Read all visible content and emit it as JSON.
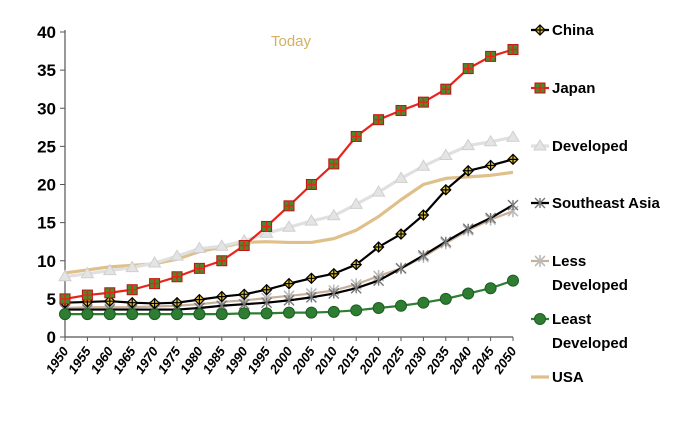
{
  "chart_data": {
    "type": "line",
    "title": "",
    "xlabel": "",
    "ylabel": "",
    "ylim": [
      0,
      40
    ],
    "yticks": [
      "0",
      "5",
      "10",
      "15",
      "20",
      "25",
      "30",
      "35",
      "40"
    ],
    "categories": [
      "1950",
      "1955",
      "1960",
      "1965",
      "1970",
      "1975",
      "1980",
      "1985",
      "1990",
      "1995",
      "2000",
      "2005",
      "2010",
      "2015",
      "2020",
      "2025",
      "2030",
      "2035",
      "2040",
      "2045",
      "2050"
    ],
    "grid": false,
    "legend_position": "right",
    "annotation": {
      "text": "Today",
      "x_category": "2000",
      "color": "#d4b060"
    },
    "series": [
      {
        "name": "China",
        "color": "#000000",
        "marker": "diamond-cross",
        "values": [
          4.5,
          4.6,
          4.7,
          4.5,
          4.4,
          4.5,
          4.9,
          5.3,
          5.6,
          6.2,
          7.0,
          7.7,
          8.3,
          9.5,
          11.8,
          13.5,
          16.0,
          19.3,
          21.8,
          22.5,
          23.3
        ]
      },
      {
        "name": "Japan",
        "color": "#e8241a",
        "marker": "square-cross",
        "values": [
          5.0,
          5.5,
          5.8,
          6.2,
          7.0,
          7.9,
          9.0,
          10.0,
          12.0,
          14.5,
          17.2,
          20.0,
          22.7,
          26.3,
          28.5,
          29.7,
          30.8,
          32.5,
          35.2,
          36.8,
          37.7
        ]
      },
      {
        "name": "Developed",
        "color": "#e0e0e0",
        "marker": "triangle",
        "values": [
          7.9,
          8.3,
          8.7,
          9.1,
          9.7,
          10.6,
          11.6,
          11.9,
          12.6,
          13.6,
          14.4,
          15.2,
          15.9,
          17.4,
          19.0,
          20.8,
          22.4,
          23.8,
          25.1,
          25.6,
          26.2
        ]
      },
      {
        "name": "Southeast Asia",
        "color": "#000000",
        "marker": "x-star",
        "values": [
          3.6,
          3.6,
          3.6,
          3.6,
          3.6,
          3.6,
          3.8,
          4.1,
          4.3,
          4.5,
          4.8,
          5.2,
          5.7,
          6.4,
          7.4,
          9.0,
          10.7,
          12.5,
          14.2,
          15.6,
          17.3
        ]
      },
      {
        "name": "Less Developed",
        "color": "#c9b09a",
        "marker": "asterisk",
        "values": [
          3.8,
          3.9,
          3.9,
          3.9,
          4.0,
          4.1,
          4.3,
          4.6,
          4.8,
          5.1,
          5.4,
          5.7,
          6.1,
          6.9,
          8.0,
          9.0,
          10.5,
          12.3,
          14.0,
          15.4,
          16.5
        ]
      },
      {
        "name": "Least Developed",
        "color": "#2e7d32",
        "marker": "circle-cross",
        "values": [
          3.0,
          3.0,
          3.0,
          3.0,
          3.0,
          3.0,
          3.0,
          3.0,
          3.1,
          3.1,
          3.2,
          3.2,
          3.3,
          3.5,
          3.8,
          4.1,
          4.5,
          5.0,
          5.7,
          6.4,
          7.4
        ]
      },
      {
        "name": "USA",
        "color": "#e0c08a",
        "marker": "none",
        "values": [
          8.4,
          8.8,
          9.2,
          9.4,
          9.6,
          10.2,
          11.2,
          11.8,
          12.4,
          12.5,
          12.4,
          12.4,
          12.9,
          14.0,
          15.8,
          18.0,
          20.0,
          20.8,
          21.0,
          21.2,
          21.6
        ]
      }
    ],
    "legend": [
      {
        "line1": "China",
        "line2": ""
      },
      {
        "line1": "Japan",
        "line2": ""
      },
      {
        "line1": "Developed",
        "line2": ""
      },
      {
        "line1": "Southeast Asia",
        "line2": ""
      },
      {
        "line1": "Less",
        "line2": "Developed"
      },
      {
        "line1": "Least",
        "line2": "Developed"
      },
      {
        "line1": "USA",
        "line2": ""
      }
    ]
  }
}
